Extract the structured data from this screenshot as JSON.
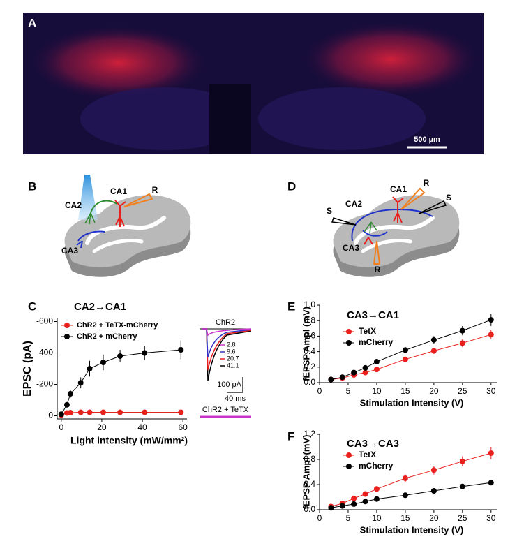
{
  "panels": {
    "A": {
      "label": "A",
      "scale_bar": "500 µm"
    },
    "B": {
      "label": "B",
      "labels": [
        "CA2",
        "CA1",
        "CA3",
        "R"
      ]
    },
    "D": {
      "label": "D",
      "labels": [
        "CA1",
        "R",
        "S",
        "S",
        "CA2",
        "CA3",
        "R"
      ]
    }
  },
  "chart_data": [
    {
      "type": "line",
      "panel": "C",
      "title": "CA2→CA1",
      "x_label": "Light intensity (mW/mm²)",
      "y_label": "EPSC (pA)",
      "x": [
        0,
        2.8,
        4.5,
        9.6,
        14,
        20.7,
        29,
        41.1,
        59
      ],
      "series": [
        {
          "name": "ChR2 + TeTX-mCherry",
          "color": "#e8201e",
          "values": [
            -5,
            -18,
            -20,
            -22,
            -22,
            -22,
            -22,
            -22,
            -22
          ],
          "errors": [
            3,
            4,
            4,
            4,
            4,
            4,
            4,
            4,
            4
          ]
        },
        {
          "name": "ChR2 + mCherry",
          "color": "#000000",
          "values": [
            -10,
            -70,
            -140,
            -210,
            -300,
            -340,
            -380,
            -400,
            -420
          ],
          "errors": [
            5,
            15,
            25,
            35,
            50,
            50,
            40,
            45,
            60
          ]
        }
      ],
      "xlim": [
        -2,
        62
      ],
      "xticks": [
        0,
        20,
        40,
        60
      ],
      "ylim": [
        20,
        -620
      ],
      "yticks": [
        -600,
        -400,
        -200,
        0
      ],
      "inset": {
        "title": "ChR2",
        "legend": [
          "2.8",
          "9.6",
          "20.7",
          "41.1"
        ],
        "legend_colors": [
          "#cc33cc",
          "#3333cc",
          "#e8201e",
          "#000000"
        ],
        "scale_y": "100 pA",
        "scale_x": "40 ms",
        "lower_title": "ChR2 + TeTX"
      }
    },
    {
      "type": "line",
      "panel": "E",
      "title": "CA3→CA1",
      "x_label": "Stimulation  Intensity (V)",
      "y_label": "fEPSP Ampl (mV)",
      "x": [
        2,
        4,
        6,
        8,
        10,
        15,
        20,
        25,
        30
      ],
      "series": [
        {
          "name": "TetX",
          "color": "#e8201e",
          "values": [
            0.04,
            0.06,
            0.1,
            0.13,
            0.17,
            0.3,
            0.41,
            0.51,
            0.62
          ],
          "errors": [
            0.01,
            0.01,
            0.01,
            0.02,
            0.02,
            0.03,
            0.04,
            0.05,
            0.06
          ]
        },
        {
          "name": "mCherry",
          "color": "#000000",
          "values": [
            0.04,
            0.07,
            0.13,
            0.19,
            0.27,
            0.42,
            0.55,
            0.67,
            0.81
          ],
          "errors": [
            0.01,
            0.01,
            0.02,
            0.02,
            0.03,
            0.04,
            0.05,
            0.06,
            0.08
          ]
        }
      ],
      "xlim": [
        0,
        31
      ],
      "xticks": [
        0,
        5,
        10,
        15,
        20,
        25,
        30
      ],
      "ylim": [
        0,
        1.0
      ],
      "yticks": [
        {
          "value": 0,
          "label": "0.0"
        },
        0.2,
        0.4,
        0.6,
        0.8,
        {
          "value": 1,
          "label": "1.0"
        }
      ]
    },
    {
      "type": "line",
      "panel": "F",
      "title": "CA3→CA3",
      "x_label": "Stimulation  Intensity (V)",
      "y_label": "fEPSP Ampl (mV)",
      "x": [
        2,
        4,
        6,
        8,
        10,
        15,
        20,
        25,
        30
      ],
      "series": [
        {
          "name": "TetX",
          "color": "#e8201e",
          "values": [
            0.05,
            0.1,
            0.18,
            0.25,
            0.33,
            0.5,
            0.63,
            0.77,
            0.9
          ],
          "errors": [
            0.01,
            0.02,
            0.02,
            0.03,
            0.04,
            0.06,
            0.07,
            0.08,
            0.1
          ]
        },
        {
          "name": "mCherry",
          "color": "#000000",
          "values": [
            0.03,
            0.06,
            0.09,
            0.13,
            0.17,
            0.23,
            0.3,
            0.37,
            0.43
          ],
          "errors": [
            0.01,
            0.01,
            0.01,
            0.01,
            0.02,
            0.02,
            0.02,
            0.02,
            0.03
          ]
        }
      ],
      "xlim": [
        0,
        31
      ],
      "xticks": [
        0,
        5,
        10,
        15,
        20,
        25,
        30
      ],
      "ylim": [
        0,
        1.2
      ],
      "yticks": [
        {
          "value": 0,
          "label": "0.0"
        },
        0.4,
        0.8,
        1.2
      ]
    }
  ]
}
